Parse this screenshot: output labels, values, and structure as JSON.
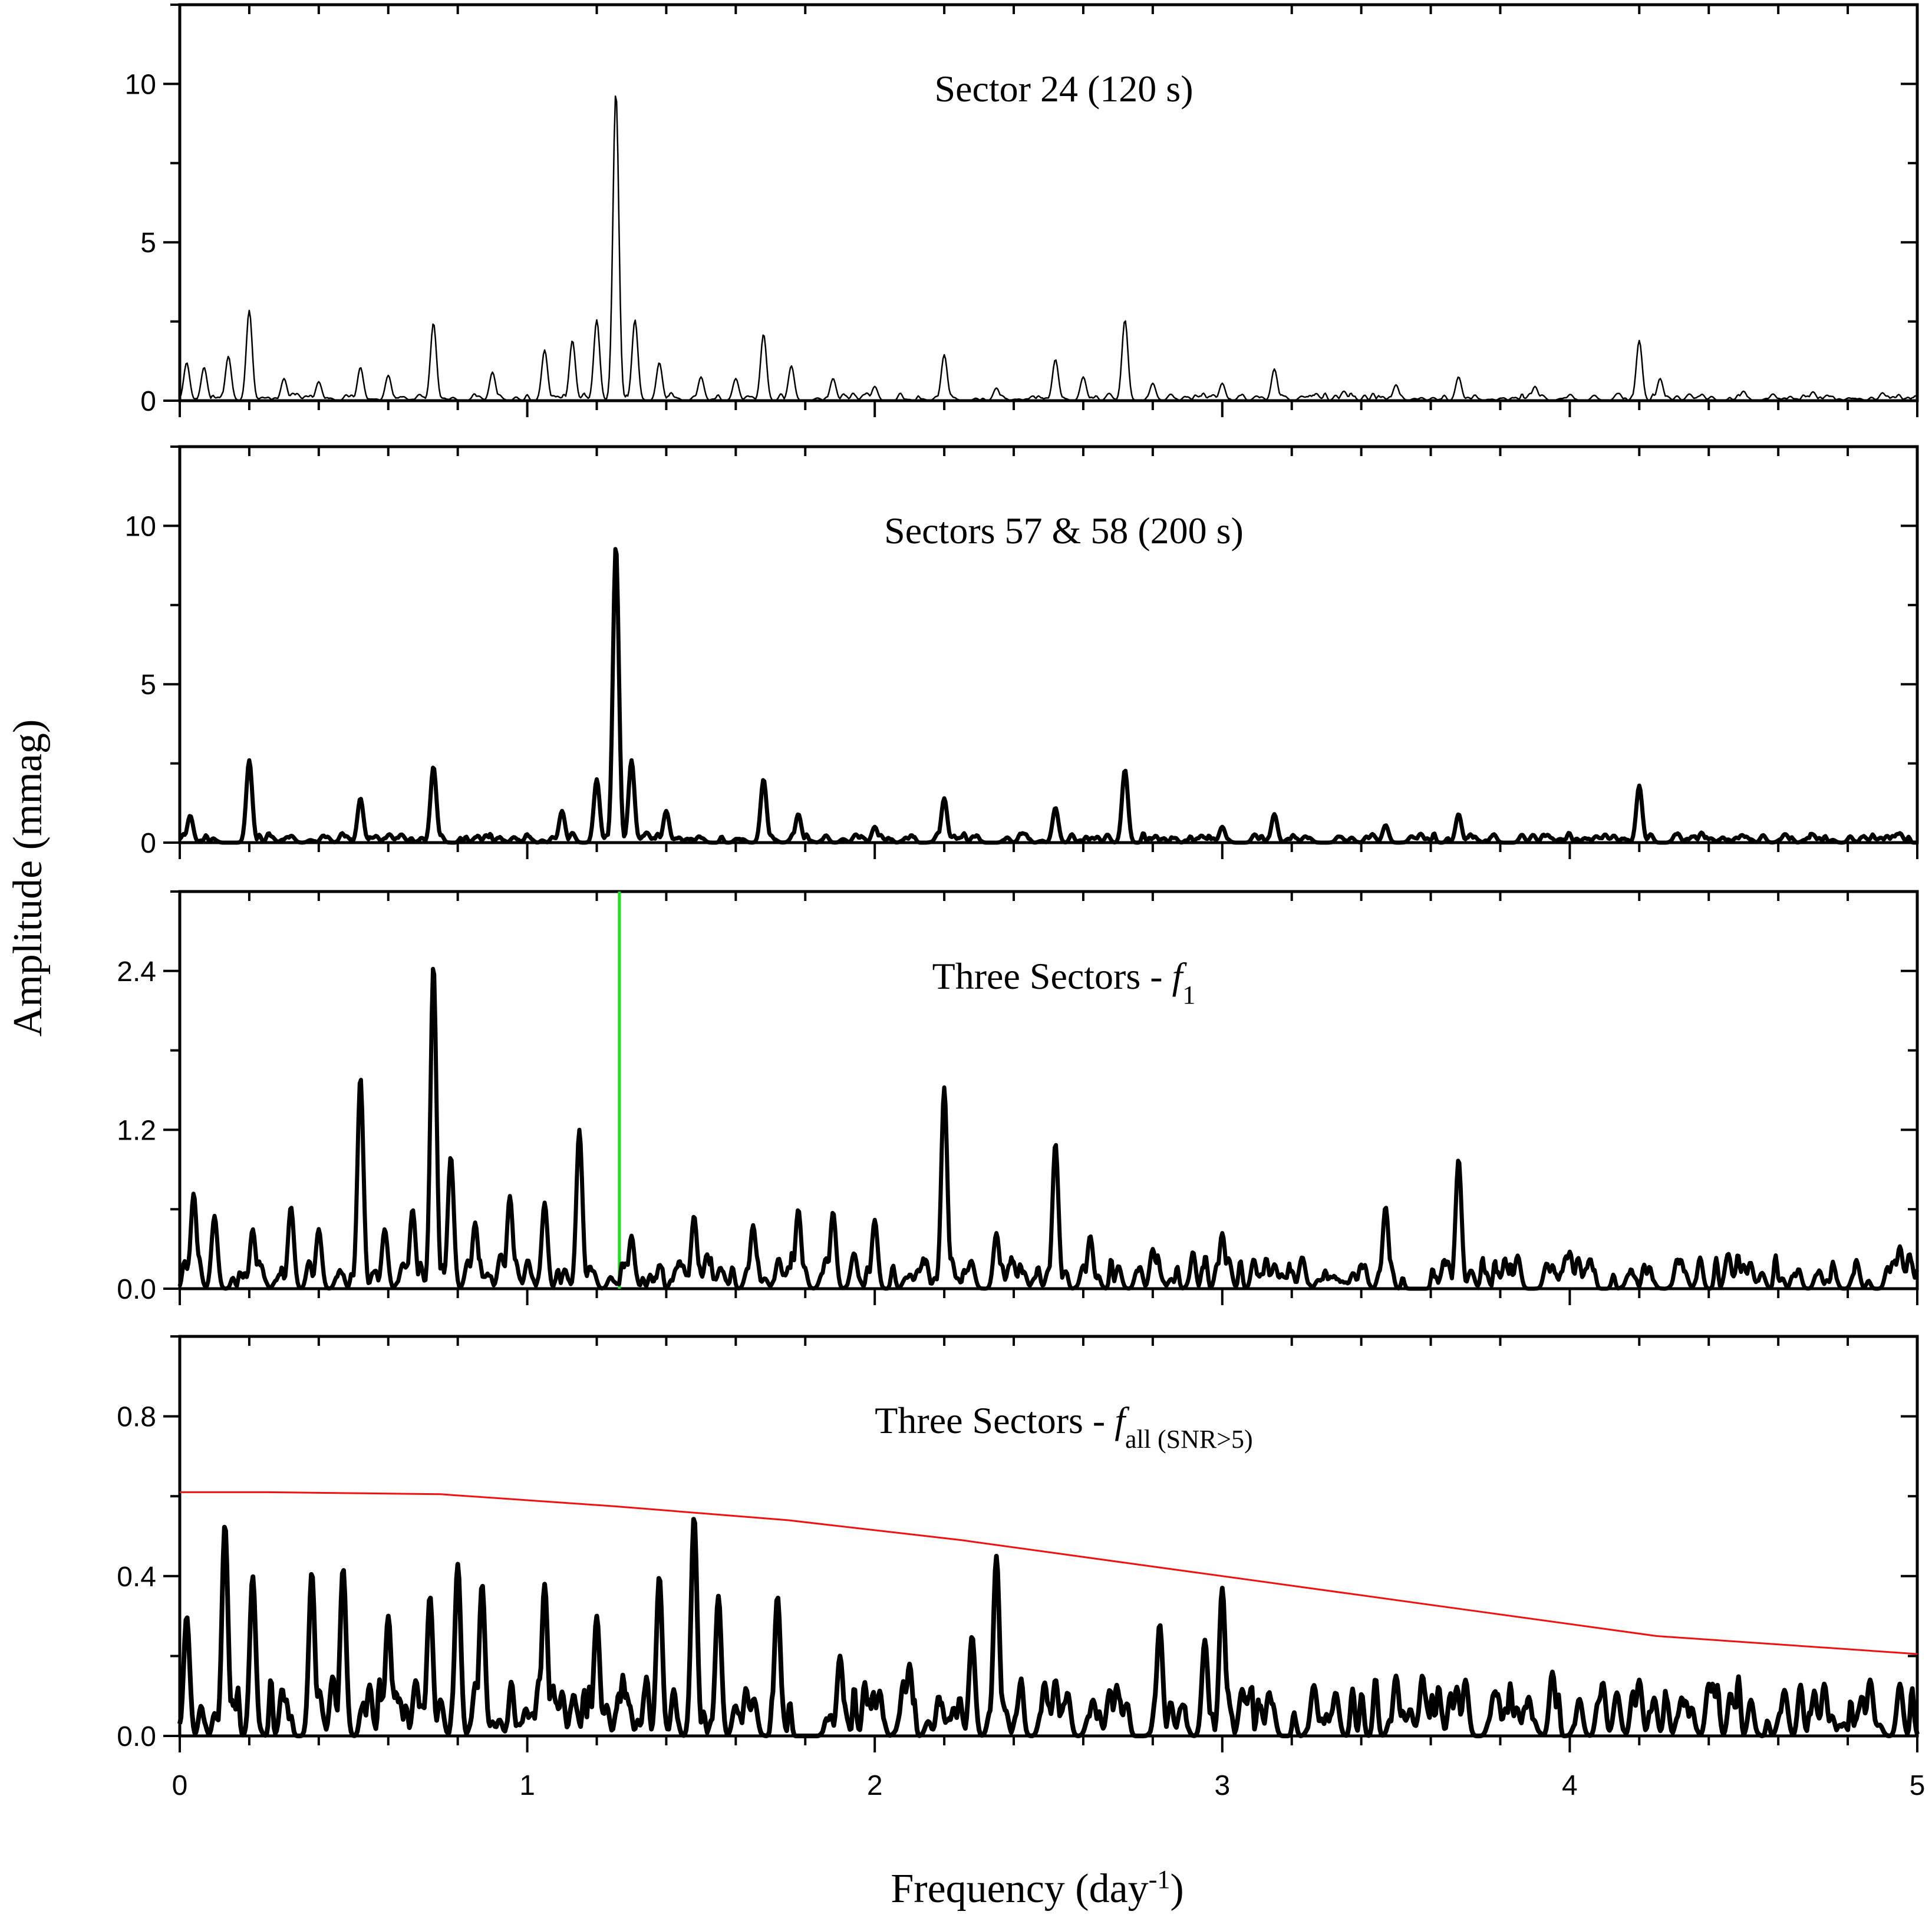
{
  "figure": {
    "ylabel": "Amplitude (mmag)",
    "xlabel_main": "Frequency (day",
    "xlabel_sup": "-1",
    "xlabel_close": ")"
  },
  "chart_data": [
    {
      "type": "line",
      "title": "Sector 24 (120 s)",
      "xlim": [
        0,
        5
      ],
      "ylim": [
        0,
        12.5
      ],
      "y_ticks": [
        0,
        5,
        10
      ],
      "y_tick_labels": [
        "0",
        "5",
        "10"
      ],
      "x_ticks": [
        0,
        1,
        2,
        3,
        4,
        5
      ],
      "grid": false,
      "series": [
        {
          "color": "#000000",
          "peaks": [
            [
              0.02,
              1.2
            ],
            [
              0.07,
              1.05
            ],
            [
              0.14,
              1.4
            ],
            [
              0.2,
              2.85
            ],
            [
              0.3,
              0.7
            ],
            [
              0.4,
              0.6
            ],
            [
              0.52,
              1.05
            ],
            [
              0.6,
              0.8
            ],
            [
              0.73,
              2.45
            ],
            [
              0.9,
              0.9
            ],
            [
              1.05,
              1.6
            ],
            [
              1.13,
              1.9
            ],
            [
              1.2,
              2.55
            ],
            [
              1.255,
              9.75
            ],
            [
              1.31,
              2.55
            ],
            [
              1.38,
              1.2
            ],
            [
              1.5,
              0.75
            ],
            [
              1.6,
              0.7
            ],
            [
              1.68,
              2.1
            ],
            [
              1.76,
              1.1
            ],
            [
              1.88,
              0.7
            ],
            [
              2.0,
              0.45
            ],
            [
              2.2,
              1.45
            ],
            [
              2.35,
              0.4
            ],
            [
              2.52,
              1.3
            ],
            [
              2.6,
              0.75
            ],
            [
              2.72,
              2.55
            ],
            [
              2.8,
              0.55
            ],
            [
              3.0,
              0.55
            ],
            [
              3.15,
              1.0
            ],
            [
              3.35,
              0.3
            ],
            [
              3.5,
              0.5
            ],
            [
              3.68,
              0.75
            ],
            [
              3.9,
              0.45
            ],
            [
              4.2,
              1.9
            ],
            [
              4.26,
              0.7
            ],
            [
              4.5,
              0.3
            ],
            [
              4.7,
              0.28
            ],
            [
              4.9,
              0.25
            ]
          ],
          "noise": 0.2,
          "linewidth": 2.5
        }
      ]
    },
    {
      "type": "line",
      "title": "Sectors 57 & 58 (200 s)",
      "xlim": [
        0,
        5
      ],
      "ylim": [
        0,
        12.5
      ],
      "y_ticks": [
        0,
        5,
        10
      ],
      "y_tick_labels": [
        "0",
        "5",
        "10"
      ],
      "x_ticks": [
        0,
        1,
        2,
        3,
        4,
        5
      ],
      "grid": false,
      "series": [
        {
          "color": "#000000",
          "peaks": [
            [
              0.03,
              0.85
            ],
            [
              0.2,
              2.6
            ],
            [
              0.52,
              1.4
            ],
            [
              0.73,
              2.4
            ],
            [
              1.1,
              1.0
            ],
            [
              1.2,
              2.0
            ],
            [
              1.255,
              9.4
            ],
            [
              1.3,
              2.6
            ],
            [
              1.4,
              1.0
            ],
            [
              1.68,
              2.0
            ],
            [
              1.78,
              0.9
            ],
            [
              2.0,
              0.5
            ],
            [
              2.2,
              1.4
            ],
            [
              2.52,
              1.1
            ],
            [
              2.72,
              2.3
            ],
            [
              3.0,
              0.5
            ],
            [
              3.15,
              0.9
            ],
            [
              3.47,
              0.55
            ],
            [
              3.68,
              0.9
            ],
            [
              4.2,
              1.8
            ],
            [
              4.7,
              0.25
            ],
            [
              4.95,
              0.3
            ]
          ],
          "noise": 0.25,
          "linewidth": 7
        }
      ]
    },
    {
      "type": "line",
      "title_main": "Three Sectors - ",
      "title_var": "f",
      "title_sub": "1",
      "xlim": [
        0,
        5
      ],
      "ylim": [
        0,
        3.0
      ],
      "y_ticks": [
        0.0,
        1.2,
        2.4
      ],
      "y_tick_labels": [
        "0.0",
        "1.2",
        "2.4"
      ],
      "x_ticks": [
        0,
        1,
        2,
        3,
        4,
        5
      ],
      "grid": false,
      "marker_line": {
        "x": 1.265,
        "color": "#22dd22"
      },
      "series": [
        {
          "color": "#000000",
          "peaks": [
            [
              0.04,
              0.72
            ],
            [
              0.1,
              0.55
            ],
            [
              0.21,
              0.45
            ],
            [
              0.32,
              0.62
            ],
            [
              0.4,
              0.45
            ],
            [
              0.52,
              1.6
            ],
            [
              0.59,
              0.45
            ],
            [
              0.67,
              0.6
            ],
            [
              0.73,
              2.45
            ],
            [
              0.78,
              1.0
            ],
            [
              0.85,
              0.5
            ],
            [
              0.95,
              0.7
            ],
            [
              1.05,
              0.65
            ],
            [
              1.15,
              1.2
            ],
            [
              1.3,
              0.4
            ],
            [
              1.48,
              0.55
            ],
            [
              1.65,
              0.48
            ],
            [
              1.78,
              0.6
            ],
            [
              1.88,
              0.58
            ],
            [
              2.0,
              0.52
            ],
            [
              2.2,
              1.52
            ],
            [
              2.35,
              0.42
            ],
            [
              2.52,
              1.1
            ],
            [
              2.62,
              0.4
            ],
            [
              2.8,
              0.3
            ],
            [
              3.0,
              0.42
            ],
            [
              3.47,
              0.62
            ],
            [
              3.68,
              0.98
            ],
            [
              3.85,
              0.25
            ],
            [
              4.0,
              0.28
            ],
            [
              4.5,
              0.18
            ],
            [
              4.95,
              0.32
            ]
          ],
          "noise": 0.22,
          "linewidth": 7
        }
      ]
    },
    {
      "type": "line",
      "title_main": "Three Sectors - ",
      "title_var": "f",
      "title_sub": "all (SNR>5)",
      "xlim": [
        0,
        5
      ],
      "ylim": [
        0,
        1.0
      ],
      "y_ticks": [
        0.0,
        0.4,
        0.8
      ],
      "y_tick_labels": [
        "0.0",
        "0.4",
        "0.8"
      ],
      "x_ticks": [
        0,
        1,
        2,
        3,
        4,
        5
      ],
      "x_tick_labels": [
        "0",
        "1",
        "2",
        "3",
        "4",
        "5"
      ],
      "grid": false,
      "series": [
        {
          "color": "#000000",
          "peaks": [
            [
              0.02,
              0.3
            ],
            [
              0.13,
              0.53
            ],
            [
              0.21,
              0.4
            ],
            [
              0.38,
              0.41
            ],
            [
              0.47,
              0.42
            ],
            [
              0.6,
              0.3
            ],
            [
              0.72,
              0.35
            ],
            [
              0.8,
              0.43
            ],
            [
              0.87,
              0.38
            ],
            [
              1.05,
              0.38
            ],
            [
              1.2,
              0.3
            ],
            [
              1.38,
              0.4
            ],
            [
              1.48,
              0.55
            ],
            [
              1.55,
              0.35
            ],
            [
              1.72,
              0.35
            ],
            [
              1.9,
              0.2
            ],
            [
              2.1,
              0.18
            ],
            [
              2.28,
              0.25
            ],
            [
              2.35,
              0.45
            ],
            [
              2.52,
              0.14
            ],
            [
              2.82,
              0.28
            ],
            [
              2.95,
              0.24
            ],
            [
              3.0,
              0.37
            ],
            [
              3.5,
              0.15
            ],
            [
              3.7,
              0.14
            ],
            [
              3.95,
              0.16
            ],
            [
              4.2,
              0.14
            ],
            [
              4.4,
              0.13
            ],
            [
              4.95,
              0.13
            ]
          ],
          "noise": 0.12,
          "linewidth": 8
        },
        {
          "color": "#ee1111",
          "threshold_x": [
            0,
            0.25,
            0.75,
            1.25,
            1.75,
            2.25,
            2.75,
            3.25,
            3.75,
            4.25,
            4.75,
            5.0
          ],
          "threshold_y": [
            0.61,
            0.61,
            0.605,
            0.575,
            0.54,
            0.49,
            0.43,
            0.37,
            0.31,
            0.25,
            0.22,
            0.205
          ],
          "linewidth": 3
        }
      ]
    }
  ]
}
